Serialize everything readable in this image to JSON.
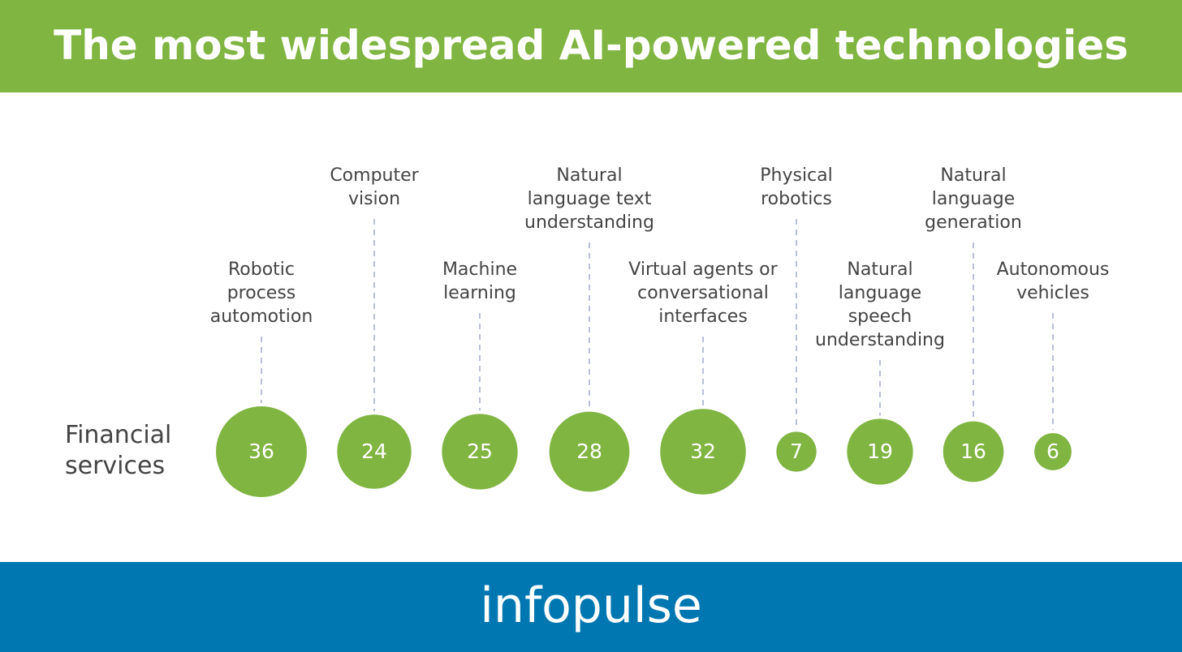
{
  "chart_data": {
    "type": "bubble",
    "title": "The most widespread AI-powered technologies",
    "categories": [
      [
        "Robotic",
        "process",
        "automotion"
      ],
      [
        "Computer",
        "vision"
      ],
      [
        "Machine",
        "learning"
      ],
      [
        "Natural",
        "language text",
        "understanding"
      ],
      [
        "Virtual agents or",
        "conversational",
        "interfaces"
      ],
      [
        "Physical",
        "robotics"
      ],
      [
        "Natural",
        "language",
        "speech",
        "understanding"
      ],
      [
        "Natural",
        "language",
        "generation"
      ],
      [
        "Autonomous",
        "vehicles"
      ]
    ],
    "series": [
      {
        "name": "Financial services",
        "color": "#80b541",
        "values": [
          36,
          24,
          25,
          28,
          32,
          7,
          19,
          16,
          6
        ]
      }
    ]
  },
  "brand": "infopulse"
}
